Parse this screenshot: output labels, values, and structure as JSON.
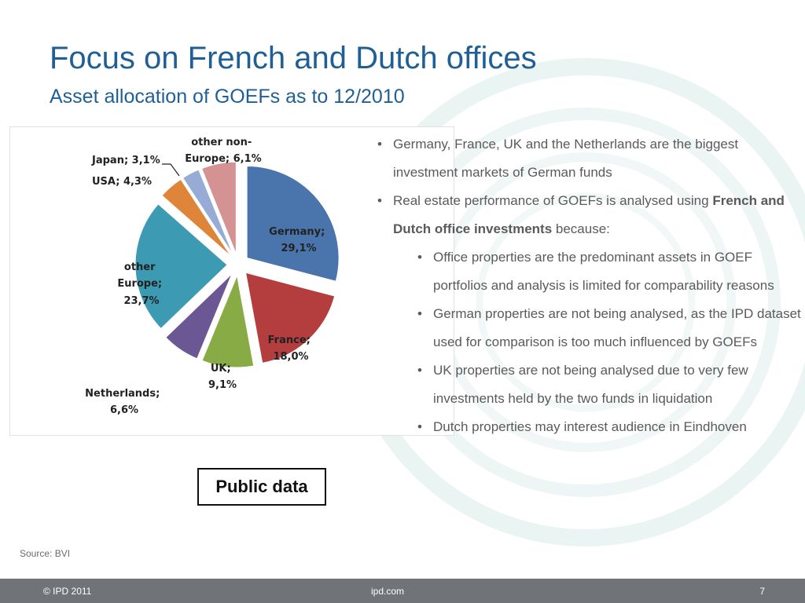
{
  "title": "Focus on French and Dutch offices",
  "subtitle": "Asset allocation of GOEFs as to 12/2010",
  "chart_data": {
    "type": "pie",
    "slices": [
      {
        "name": "Germany",
        "value": 29.1,
        "label": "29,1%",
        "color": "#4a74ac"
      },
      {
        "name": "France",
        "value": 18.0,
        "label": "18,0%",
        "color": "#b43e3e"
      },
      {
        "name": "UK",
        "value": 9.1,
        "label": "9,1%",
        "color": "#88ab45"
      },
      {
        "name": "Netherlands",
        "value": 6.6,
        "label": "6,6%",
        "color": "#6c5795"
      },
      {
        "name": "other Europe",
        "value": 23.7,
        "label": "23,7%",
        "color": "#3c9bb2"
      },
      {
        "name": "USA",
        "value": 4.3,
        "label": "4,3%",
        "color": "#de8539"
      },
      {
        "name": "Japan",
        "value": 3.1,
        "label": "3,1%",
        "color": "#96acd6"
      },
      {
        "name": "other non-Europe",
        "value": 6.1,
        "label": "6,1%",
        "color": "#d59293"
      }
    ],
    "exploded": true,
    "legend": "none"
  },
  "labels": {
    "germany": [
      "Germany;",
      "29,1%"
    ],
    "france": [
      "France;",
      "18,0%"
    ],
    "uk": [
      "UK;",
      "9,1%"
    ],
    "netherlands": [
      "Netherlands;",
      "6,6%"
    ],
    "other_europe": [
      "other",
      "Europe;",
      "23,7%"
    ],
    "usa": "USA; 4,3%",
    "japan": "Japan; 3,1%",
    "other_non_europe": [
      "other non-",
      "Europe; 6,1%"
    ]
  },
  "bullets": [
    {
      "level": 1,
      "text": "Germany, France, UK and the Netherlands  are the biggest investment markets of German funds"
    },
    {
      "level": 1,
      "text": "Real estate performance of GOEFs is analysed using ",
      "bold": "French and Dutch office investments",
      "after": " because:"
    },
    {
      "level": 2,
      "text": "Office properties are the predominant assets in GOEF portfolios and analysis is limited for comparability reasons"
    },
    {
      "level": 2,
      "text": "German properties are not being analysed, as the IPD dataset used for comparison is too much influenced by GOEFs"
    },
    {
      "level": 2,
      "text": "UK properties are not being analysed due to very few investments held by the two funds in liquidation"
    },
    {
      "level": 2,
      "text": "Dutch properties may interest audience in Eindhoven"
    }
  ],
  "public_data": "Public data",
  "source": "Source: BVI",
  "footer": {
    "left": "© IPD 2011",
    "center": "ipd.com",
    "page": "7"
  }
}
